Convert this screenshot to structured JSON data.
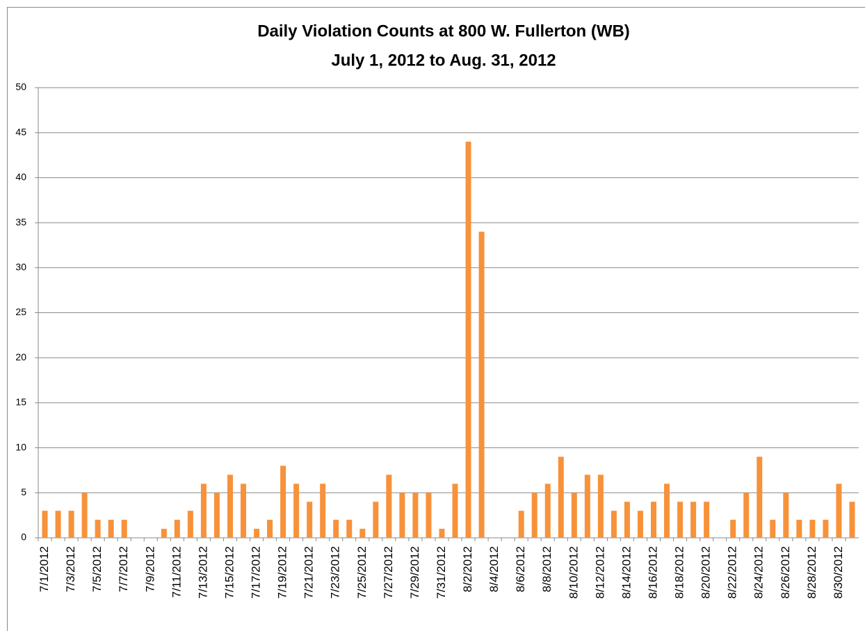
{
  "chart_data": {
    "type": "bar",
    "title": "Daily Violation Counts at 800 W. Fullerton (WB)",
    "subtitle": "July 1, 2012 to Aug. 31, 2012",
    "categories": [
      "7/1/2012",
      null,
      "7/3/2012",
      null,
      "7/5/2012",
      null,
      "7/7/2012",
      null,
      "7/9/2012",
      null,
      "7/11/2012",
      null,
      "7/13/2012",
      null,
      "7/15/2012",
      null,
      "7/17/2012",
      null,
      "7/19/2012",
      null,
      "7/21/2012",
      null,
      "7/23/2012",
      null,
      "7/25/2012",
      null,
      "7/27/2012",
      null,
      "7/29/2012",
      null,
      "7/31/2012",
      null,
      "8/2/2012",
      null,
      "8/4/2012",
      null,
      "8/6/2012",
      null,
      "8/8/2012",
      null,
      "8/10/2012",
      null,
      "8/12/2012",
      null,
      "8/14/2012",
      null,
      "8/16/2012",
      null,
      "8/18/2012",
      null,
      "8/20/2012",
      null,
      "8/22/2012",
      null,
      "8/24/2012",
      null,
      "8/26/2012",
      null,
      "8/28/2012",
      null,
      "8/30/2012",
      null
    ],
    "values": [
      3,
      3,
      3,
      5,
      2,
      2,
      2,
      0,
      0,
      1,
      2,
      3,
      6,
      5,
      7,
      6,
      1,
      2,
      8,
      6,
      4,
      6,
      2,
      2,
      1,
      4,
      7,
      5,
      5,
      5,
      1,
      6,
      44,
      34,
      0,
      0,
      3,
      5,
      6,
      9,
      5,
      7,
      7,
      3,
      4,
      3,
      4,
      6,
      4,
      4,
      4,
      0,
      2,
      5,
      9,
      2,
      5,
      2,
      2,
      2,
      6,
      4
    ],
    "color": "#f7923a",
    "ylim": [
      0,
      50
    ],
    "yticks": [
      0,
      5,
      10,
      15,
      20,
      25,
      30,
      35,
      40,
      45,
      50
    ],
    "grid": true
  }
}
